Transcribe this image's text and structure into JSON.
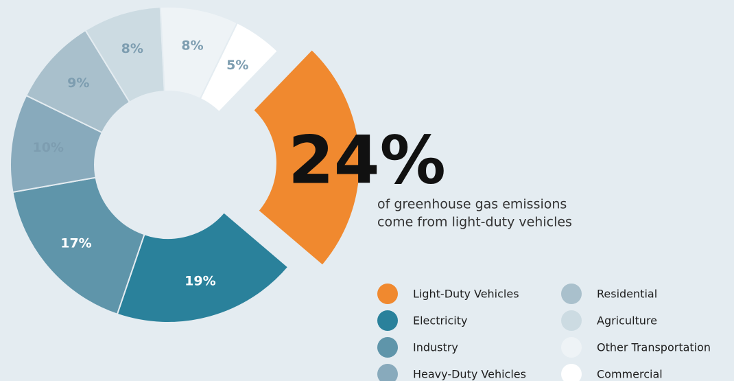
{
  "chart_data": {
    "type": "pie",
    "categories": [
      "Light-Duty Vehicles",
      "Electricity",
      "Industry",
      "Heavy-Duty Vehicles",
      "Residential",
      "Agriculture",
      "Other Transportation",
      "Commercial"
    ],
    "values": [
      24,
      19,
      17,
      10,
      9,
      8,
      8,
      5
    ],
    "value_labels": [
      "24%",
      "19%",
      "17%",
      "10%",
      "9%",
      "8%",
      "8%",
      "5%"
    ],
    "colors": [
      "#f0892f",
      "#2a819b",
      "#5f95aa",
      "#88aabc",
      "#a9c0cc",
      "#ccdbe2",
      "#eef3f6",
      "#ffffff"
    ],
    "annotation": [
      "of greenhouse gas emissions",
      "come from light-duty vehicles"
    ],
    "legend": true
  }
}
